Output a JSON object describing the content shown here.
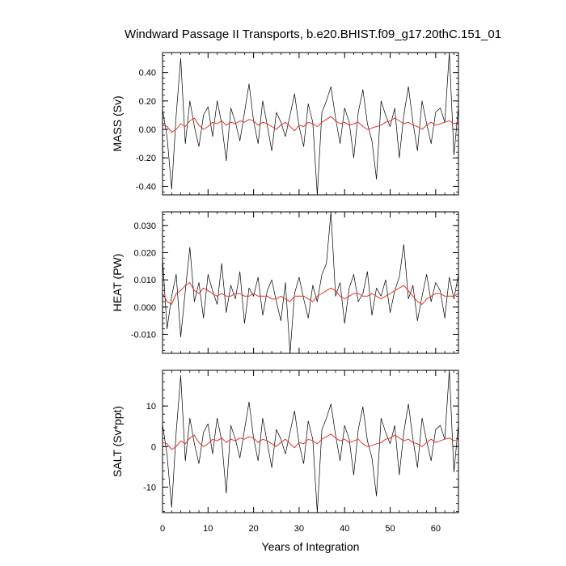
{
  "chart_data": {
    "type": "line",
    "title": "Windward Passage II Transports, b.e20.BHIST.f09_g17.20thC.151_01",
    "xlabel": "Years of Integration",
    "xlim": [
      0,
      65
    ],
    "xticks": [
      0,
      10,
      20,
      30,
      40,
      50,
      60
    ],
    "xtick_labels": [
      "0",
      "10",
      "20",
      "30",
      "40",
      "50",
      "60"
    ],
    "colors": {
      "raw": "#000000",
      "smooth": "#e8302a",
      "axes": "#000000"
    },
    "panels": [
      {
        "id": "mass",
        "ylabel": "MASS (Sv)",
        "ylim": [
          -0.46,
          0.54
        ],
        "yticks": [
          -0.4,
          -0.2,
          0.0,
          0.2,
          0.4
        ],
        "ytick_labels": [
          "-0.40",
          "-0.20",
          "0.00",
          "0.20",
          "0.40"
        ],
        "series": [
          {
            "role": "raw",
            "x": [
              0,
              1,
              2,
              3,
              4,
              5,
              6,
              7,
              8,
              9,
              10,
              11,
              12,
              13,
              14,
              15,
              16,
              17,
              18,
              19,
              20,
              21,
              22,
              23,
              24,
              25,
              26,
              27,
              28,
              29,
              30,
              31,
              32,
              33,
              34,
              35,
              36,
              37,
              38,
              39,
              40,
              41,
              42,
              43,
              44,
              45,
              46,
              47,
              48,
              49,
              50,
              51,
              52,
              53,
              54,
              55,
              56,
              57,
              58,
              59,
              60,
              61,
              62,
              63,
              64,
              65
            ],
            "y": [
              0.14,
              -0.05,
              -0.42,
              0.1,
              0.5,
              -0.1,
              0.2,
              0.02,
              -0.12,
              0.1,
              0.16,
              -0.05,
              0.2,
              0.04,
              -0.22,
              0.15,
              0.05,
              -0.08,
              0.12,
              0.32,
              0.06,
              -0.1,
              0.2,
              0.03,
              -0.15,
              0.12,
              0.05,
              -0.05,
              0.1,
              0.25,
              0.02,
              -0.12,
              0.18,
              0.05,
              -0.46,
              0.12,
              0.2,
              0.3,
              0.08,
              -0.1,
              0.15,
              0.05,
              -0.2,
              0.12,
              0.28,
              0.04,
              -0.08,
              -0.35,
              0.2,
              0.1,
              0.02,
              0.15,
              -0.2,
              0.1,
              0.3,
              0.05,
              -0.15,
              0.2,
              0.04,
              -0.1,
              0.12,
              0.15,
              0.05,
              0.54,
              -0.18,
              0.16
            ]
          },
          {
            "role": "smooth",
            "x": [
              0,
              1,
              2,
              3,
              4,
              5,
              6,
              7,
              8,
              9,
              10,
              11,
              12,
              13,
              14,
              15,
              16,
              17,
              18,
              19,
              20,
              21,
              22,
              23,
              24,
              25,
              26,
              27,
              28,
              29,
              30,
              31,
              32,
              33,
              34,
              35,
              36,
              37,
              38,
              39,
              40,
              41,
              42,
              43,
              44,
              45,
              46,
              47,
              48,
              49,
              50,
              51,
              52,
              53,
              54,
              55,
              56,
              57,
              58,
              59,
              60,
              61,
              62,
              63,
              64,
              65
            ],
            "y": [
              0.03,
              0.02,
              -0.02,
              0.0,
              0.04,
              0.02,
              0.06,
              0.08,
              0.03,
              0.0,
              0.02,
              0.05,
              0.04,
              0.06,
              0.03,
              0.05,
              0.04,
              0.06,
              0.05,
              0.07,
              0.06,
              0.03,
              0.05,
              0.04,
              0.02,
              0.0,
              0.03,
              0.05,
              0.02,
              -0.01,
              0.03,
              0.02,
              0.05,
              0.04,
              0.02,
              0.05,
              0.07,
              0.09,
              0.06,
              0.04,
              0.05,
              0.03,
              0.04,
              0.05,
              0.02,
              0.0,
              0.01,
              0.02,
              0.03,
              0.05,
              0.06,
              0.08,
              0.06,
              0.04,
              0.05,
              0.03,
              0.02,
              0.0,
              0.03,
              0.05,
              0.03,
              0.04,
              0.05,
              0.06,
              0.04,
              0.05
            ]
          }
        ]
      },
      {
        "id": "heat",
        "ylabel": "HEAT (PW)",
        "ylim": [
          -0.017,
          0.035
        ],
        "yticks": [
          -0.01,
          0.0,
          0.01,
          0.02,
          0.03
        ],
        "ytick_labels": [
          "-0.010",
          "0.000",
          "0.010",
          "0.020",
          "0.030"
        ],
        "series": [
          {
            "role": "raw",
            "x": [
              0,
              1,
              2,
              3,
              4,
              5,
              6,
              7,
              8,
              9,
              10,
              11,
              12,
              13,
              14,
              15,
              16,
              17,
              18,
              19,
              20,
              21,
              22,
              23,
              24,
              25,
              26,
              27,
              28,
              29,
              30,
              31,
              32,
              33,
              34,
              35,
              36,
              37,
              38,
              39,
              40,
              41,
              42,
              43,
              44,
              45,
              46,
              47,
              48,
              49,
              50,
              51,
              52,
              53,
              54,
              55,
              56,
              57,
              58,
              59,
              60,
              61,
              62,
              63,
              64,
              65
            ],
            "y": [
              0.018,
              -0.008,
              0.004,
              0.012,
              -0.011,
              0.006,
              0.022,
              0.002,
              0.009,
              -0.004,
              0.012,
              0.006,
              0.001,
              0.016,
              -0.002,
              0.008,
              0.003,
              0.013,
              -0.006,
              0.007,
              0.004,
              0.011,
              -0.003,
              0.006,
              0.01,
              0.002,
              -0.005,
              0.009,
              -0.017,
              0.005,
              0.011,
              0.003,
              -0.004,
              0.008,
              0.002,
              0.012,
              0.016,
              0.035,
              0.004,
              0.009,
              -0.006,
              0.007,
              0.012,
              0.002,
              0.005,
              0.013,
              -0.003,
              0.007,
              0.004,
              0.01,
              -0.002,
              0.006,
              0.011,
              0.023,
              0.003,
              0.008,
              -0.005,
              0.004,
              0.012,
              0.002,
              0.009,
              0.006,
              -0.004,
              0.011,
              0.003,
              0.012
            ]
          },
          {
            "role": "smooth",
            "x": [
              0,
              1,
              2,
              3,
              4,
              5,
              6,
              7,
              8,
              9,
              10,
              11,
              12,
              13,
              14,
              15,
              16,
              17,
              18,
              19,
              20,
              21,
              22,
              23,
              24,
              25,
              26,
              27,
              28,
              29,
              30,
              31,
              32,
              33,
              34,
              35,
              36,
              37,
              38,
              39,
              40,
              41,
              42,
              43,
              44,
              45,
              46,
              47,
              48,
              49,
              50,
              51,
              52,
              53,
              54,
              55,
              56,
              57,
              58,
              59,
              60,
              61,
              62,
              63,
              64,
              65
            ],
            "y": [
              0.005,
              0.002,
              0.001,
              0.005,
              0.006,
              0.008,
              0.009,
              0.006,
              0.005,
              0.007,
              0.006,
              0.005,
              0.004,
              0.005,
              0.004,
              0.004,
              0.005,
              0.005,
              0.004,
              0.004,
              0.005,
              0.004,
              0.004,
              0.004,
              0.003,
              0.003,
              0.004,
              0.003,
              0.002,
              0.004,
              0.004,
              0.004,
              0.003,
              0.002,
              0.004,
              0.005,
              0.006,
              0.007,
              0.006,
              0.004,
              0.003,
              0.004,
              0.005,
              0.005,
              0.004,
              0.004,
              0.005,
              0.004,
              0.003,
              0.004,
              0.005,
              0.006,
              0.007,
              0.008,
              0.006,
              0.004,
              0.002,
              0.001,
              0.003,
              0.004,
              0.005,
              0.005,
              0.004,
              0.004,
              0.004,
              0.005
            ]
          }
        ]
      },
      {
        "id": "salt",
        "ylabel": "SALT (Sv*ppt)",
        "ylim": [
          -16.3,
          18.8
        ],
        "yticks": [
          -10,
          0,
          10
        ],
        "ytick_labels": [
          "-10",
          "0",
          "10"
        ],
        "series": [
          {
            "role": "raw",
            "x": [
              0,
              1,
              2,
              3,
              4,
              5,
              6,
              7,
              8,
              9,
              10,
              11,
              12,
              13,
              14,
              15,
              16,
              17,
              18,
              19,
              20,
              21,
              22,
              23,
              24,
              25,
              26,
              27,
              28,
              29,
              30,
              31,
              32,
              33,
              34,
              35,
              36,
              37,
              38,
              39,
              40,
              41,
              42,
              43,
              44,
              45,
              46,
              47,
              48,
              49,
              50,
              51,
              52,
              53,
              54,
              55,
              56,
              57,
              58,
              59,
              60,
              61,
              62,
              63,
              64,
              65
            ],
            "y": [
              5.5,
              -2,
              -15,
              3.5,
              17.5,
              -3.5,
              7,
              0.7,
              -4.2,
              3.5,
              5.6,
              -1.8,
              7,
              1.4,
              -11.5,
              5.2,
              1.8,
              -2.8,
              4.2,
              11,
              2.1,
              -3.5,
              7,
              1,
              -5.2,
              4.2,
              1.8,
              -1.8,
              3.5,
              8.8,
              0.7,
              -4.2,
              6.3,
              1.8,
              -16.3,
              4.2,
              7,
              10.5,
              2.8,
              -3.5,
              5.2,
              1.8,
              -7,
              4.2,
              9.8,
              1.4,
              -2.8,
              -12.2,
              7,
              3.5,
              0.7,
              5.2,
              -7,
              3.5,
              10.5,
              1.8,
              -5.2,
              7,
              1.4,
              -3.5,
              4.2,
              5.2,
              1.8,
              18.8,
              -6.3,
              5.6
            ]
          },
          {
            "role": "smooth",
            "x": [
              0,
              1,
              2,
              3,
              4,
              5,
              6,
              7,
              8,
              9,
              10,
              11,
              12,
              13,
              14,
              15,
              16,
              17,
              18,
              19,
              20,
              21,
              22,
              23,
              24,
              25,
              26,
              27,
              28,
              29,
              30,
              31,
              32,
              33,
              34,
              35,
              36,
              37,
              38,
              39,
              40,
              41,
              42,
              43,
              44,
              45,
              46,
              47,
              48,
              49,
              50,
              51,
              52,
              53,
              54,
              55,
              56,
              57,
              58,
              59,
              60,
              61,
              62,
              63,
              64,
              65
            ],
            "y": [
              1,
              0.7,
              -0.7,
              0,
              1.4,
              0.7,
              2.1,
              2.8,
              1,
              0,
              0.7,
              1.8,
              1.4,
              2.1,
              1,
              1.8,
              1.4,
              2.1,
              1.8,
              2.4,
              2.1,
              1,
              1.8,
              1.4,
              0.7,
              0,
              1,
              1.8,
              0.7,
              -0.3,
              1,
              0.7,
              1.8,
              1.4,
              0.7,
              1.8,
              2.4,
              3.1,
              2.1,
              1.4,
              1.8,
              1,
              1.4,
              1.8,
              0.7,
              0,
              0.3,
              0.7,
              1,
              1.8,
              2.1,
              2.8,
              2.1,
              1.4,
              1.8,
              1,
              0.7,
              0,
              1,
              1.8,
              1,
              1.4,
              1.8,
              2.1,
              1.4,
              1.8
            ]
          }
        ]
      }
    ]
  }
}
